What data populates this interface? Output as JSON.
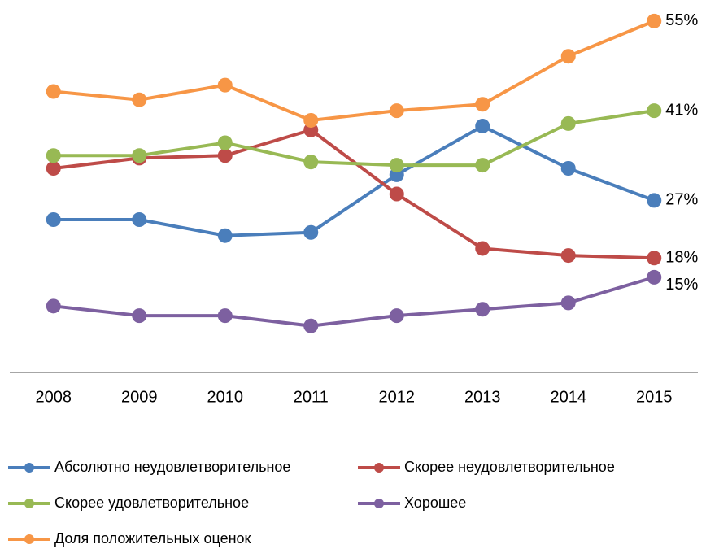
{
  "chart_data": {
    "type": "line",
    "categories": [
      "2008",
      "2009",
      "2010",
      "2011",
      "2012",
      "2013",
      "2014",
      "2015"
    ],
    "ylim": [
      0,
      60
    ],
    "series": [
      {
        "name": "Абсолютно неудовлетворительное",
        "color": "#4a7ebb",
        "values": [
          24,
          24,
          21.5,
          22,
          31,
          38.6,
          32,
          27
        ],
        "value_labels": [
          null,
          null,
          null,
          null,
          null,
          null,
          null,
          "27%"
        ]
      },
      {
        "name": "Скорее неудовлетворительное",
        "color": "#be4b48",
        "values": [
          32,
          33.6,
          34,
          38,
          28,
          19.5,
          18.4,
          18
        ],
        "value_labels": [
          null,
          null,
          null,
          null,
          null,
          null,
          null,
          "18%"
        ]
      },
      {
        "name": "Скорее удовлетворительное",
        "color": "#98b954",
        "values": [
          34,
          34,
          36,
          33,
          32.5,
          32.5,
          39,
          41
        ],
        "value_labels": [
          null,
          null,
          null,
          null,
          null,
          null,
          null,
          "41%"
        ]
      },
      {
        "name": "Хорошее",
        "color": "#7d60a0",
        "values": [
          10.5,
          9,
          9,
          7.4,
          9,
          10,
          11,
          15
        ],
        "value_labels": [
          null,
          null,
          null,
          null,
          null,
          null,
          null,
          "15%"
        ]
      },
      {
        "name": "Доля положительных оценок",
        "color": "#f79646",
        "values": [
          44,
          42.7,
          45,
          39.5,
          41,
          42,
          49.5,
          55
        ],
        "value_labels": [
          null,
          null,
          null,
          null,
          null,
          null,
          null,
          "55%"
        ]
      }
    ]
  }
}
